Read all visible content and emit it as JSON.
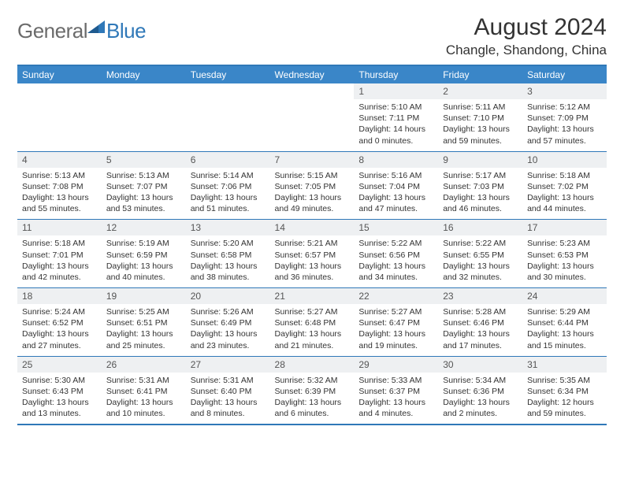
{
  "logo": {
    "text1": "General",
    "text2": "Blue"
  },
  "title": "August 2024",
  "location": "Changle, Shandong, China",
  "columns": [
    "Sunday",
    "Monday",
    "Tuesday",
    "Wednesday",
    "Thursday",
    "Friday",
    "Saturday"
  ],
  "colors": {
    "header_bg": "#3a86c8",
    "border": "#2f78b8",
    "daynum_bg": "#eef0f2",
    "logo_gray": "#6b6b6b",
    "logo_blue": "#2f78b8"
  },
  "weeks": [
    [
      {
        "day": "",
        "sunrise": "",
        "sunset": "",
        "daylight": ""
      },
      {
        "day": "",
        "sunrise": "",
        "sunset": "",
        "daylight": ""
      },
      {
        "day": "",
        "sunrise": "",
        "sunset": "",
        "daylight": ""
      },
      {
        "day": "",
        "sunrise": "",
        "sunset": "",
        "daylight": ""
      },
      {
        "day": "1",
        "sunrise": "Sunrise: 5:10 AM",
        "sunset": "Sunset: 7:11 PM",
        "daylight": "Daylight: 14 hours and 0 minutes."
      },
      {
        "day": "2",
        "sunrise": "Sunrise: 5:11 AM",
        "sunset": "Sunset: 7:10 PM",
        "daylight": "Daylight: 13 hours and 59 minutes."
      },
      {
        "day": "3",
        "sunrise": "Sunrise: 5:12 AM",
        "sunset": "Sunset: 7:09 PM",
        "daylight": "Daylight: 13 hours and 57 minutes."
      }
    ],
    [
      {
        "day": "4",
        "sunrise": "Sunrise: 5:13 AM",
        "sunset": "Sunset: 7:08 PM",
        "daylight": "Daylight: 13 hours and 55 minutes."
      },
      {
        "day": "5",
        "sunrise": "Sunrise: 5:13 AM",
        "sunset": "Sunset: 7:07 PM",
        "daylight": "Daylight: 13 hours and 53 minutes."
      },
      {
        "day": "6",
        "sunrise": "Sunrise: 5:14 AM",
        "sunset": "Sunset: 7:06 PM",
        "daylight": "Daylight: 13 hours and 51 minutes."
      },
      {
        "day": "7",
        "sunrise": "Sunrise: 5:15 AM",
        "sunset": "Sunset: 7:05 PM",
        "daylight": "Daylight: 13 hours and 49 minutes."
      },
      {
        "day": "8",
        "sunrise": "Sunrise: 5:16 AM",
        "sunset": "Sunset: 7:04 PM",
        "daylight": "Daylight: 13 hours and 47 minutes."
      },
      {
        "day": "9",
        "sunrise": "Sunrise: 5:17 AM",
        "sunset": "Sunset: 7:03 PM",
        "daylight": "Daylight: 13 hours and 46 minutes."
      },
      {
        "day": "10",
        "sunrise": "Sunrise: 5:18 AM",
        "sunset": "Sunset: 7:02 PM",
        "daylight": "Daylight: 13 hours and 44 minutes."
      }
    ],
    [
      {
        "day": "11",
        "sunrise": "Sunrise: 5:18 AM",
        "sunset": "Sunset: 7:01 PM",
        "daylight": "Daylight: 13 hours and 42 minutes."
      },
      {
        "day": "12",
        "sunrise": "Sunrise: 5:19 AM",
        "sunset": "Sunset: 6:59 PM",
        "daylight": "Daylight: 13 hours and 40 minutes."
      },
      {
        "day": "13",
        "sunrise": "Sunrise: 5:20 AM",
        "sunset": "Sunset: 6:58 PM",
        "daylight": "Daylight: 13 hours and 38 minutes."
      },
      {
        "day": "14",
        "sunrise": "Sunrise: 5:21 AM",
        "sunset": "Sunset: 6:57 PM",
        "daylight": "Daylight: 13 hours and 36 minutes."
      },
      {
        "day": "15",
        "sunrise": "Sunrise: 5:22 AM",
        "sunset": "Sunset: 6:56 PM",
        "daylight": "Daylight: 13 hours and 34 minutes."
      },
      {
        "day": "16",
        "sunrise": "Sunrise: 5:22 AM",
        "sunset": "Sunset: 6:55 PM",
        "daylight": "Daylight: 13 hours and 32 minutes."
      },
      {
        "day": "17",
        "sunrise": "Sunrise: 5:23 AM",
        "sunset": "Sunset: 6:53 PM",
        "daylight": "Daylight: 13 hours and 30 minutes."
      }
    ],
    [
      {
        "day": "18",
        "sunrise": "Sunrise: 5:24 AM",
        "sunset": "Sunset: 6:52 PM",
        "daylight": "Daylight: 13 hours and 27 minutes."
      },
      {
        "day": "19",
        "sunrise": "Sunrise: 5:25 AM",
        "sunset": "Sunset: 6:51 PM",
        "daylight": "Daylight: 13 hours and 25 minutes."
      },
      {
        "day": "20",
        "sunrise": "Sunrise: 5:26 AM",
        "sunset": "Sunset: 6:49 PM",
        "daylight": "Daylight: 13 hours and 23 minutes."
      },
      {
        "day": "21",
        "sunrise": "Sunrise: 5:27 AM",
        "sunset": "Sunset: 6:48 PM",
        "daylight": "Daylight: 13 hours and 21 minutes."
      },
      {
        "day": "22",
        "sunrise": "Sunrise: 5:27 AM",
        "sunset": "Sunset: 6:47 PM",
        "daylight": "Daylight: 13 hours and 19 minutes."
      },
      {
        "day": "23",
        "sunrise": "Sunrise: 5:28 AM",
        "sunset": "Sunset: 6:46 PM",
        "daylight": "Daylight: 13 hours and 17 minutes."
      },
      {
        "day": "24",
        "sunrise": "Sunrise: 5:29 AM",
        "sunset": "Sunset: 6:44 PM",
        "daylight": "Daylight: 13 hours and 15 minutes."
      }
    ],
    [
      {
        "day": "25",
        "sunrise": "Sunrise: 5:30 AM",
        "sunset": "Sunset: 6:43 PM",
        "daylight": "Daylight: 13 hours and 13 minutes."
      },
      {
        "day": "26",
        "sunrise": "Sunrise: 5:31 AM",
        "sunset": "Sunset: 6:41 PM",
        "daylight": "Daylight: 13 hours and 10 minutes."
      },
      {
        "day": "27",
        "sunrise": "Sunrise: 5:31 AM",
        "sunset": "Sunset: 6:40 PM",
        "daylight": "Daylight: 13 hours and 8 minutes."
      },
      {
        "day": "28",
        "sunrise": "Sunrise: 5:32 AM",
        "sunset": "Sunset: 6:39 PM",
        "daylight": "Daylight: 13 hours and 6 minutes."
      },
      {
        "day": "29",
        "sunrise": "Sunrise: 5:33 AM",
        "sunset": "Sunset: 6:37 PM",
        "daylight": "Daylight: 13 hours and 4 minutes."
      },
      {
        "day": "30",
        "sunrise": "Sunrise: 5:34 AM",
        "sunset": "Sunset: 6:36 PM",
        "daylight": "Daylight: 13 hours and 2 minutes."
      },
      {
        "day": "31",
        "sunrise": "Sunrise: 5:35 AM",
        "sunset": "Sunset: 6:34 PM",
        "daylight": "Daylight: 12 hours and 59 minutes."
      }
    ]
  ]
}
